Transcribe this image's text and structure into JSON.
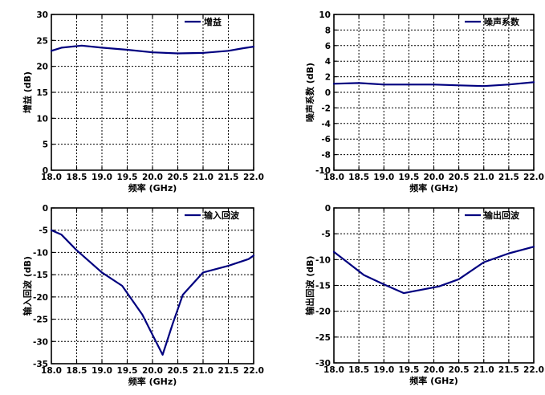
{
  "chart_data": [
    {
      "type": "line",
      "title": "",
      "xlabel": "频率 (GHz)",
      "ylabel": "增益 (dB)",
      "xlim": [
        18.0,
        22.0
      ],
      "ylim": [
        0,
        30
      ],
      "xticks": [
        "18.0",
        "18.5",
        "19.0",
        "19.5",
        "20.0",
        "20.5",
        "21.0",
        "21.5",
        "22.0"
      ],
      "yticks": [
        "0",
        "5",
        "10",
        "15",
        "20",
        "25",
        "30"
      ],
      "grid": true,
      "legend_position": "top-right",
      "series": [
        {
          "name": "增益",
          "color": "#00007f",
          "x": [
            18.0,
            18.2,
            18.6,
            19.0,
            19.5,
            20.0,
            20.5,
            21.0,
            21.5,
            21.8,
            22.0
          ],
          "y": [
            23.0,
            23.6,
            24.0,
            23.6,
            23.2,
            22.7,
            22.5,
            22.6,
            23.0,
            23.5,
            23.8
          ]
        }
      ]
    },
    {
      "type": "line",
      "title": "",
      "xlabel": "频率 (GHz)",
      "ylabel": "噪声系数 (dB)",
      "xlim": [
        18.0,
        22.0
      ],
      "ylim": [
        -10,
        10
      ],
      "xticks": [
        "18.0",
        "18.5",
        "19.0",
        "19.5",
        "20.0",
        "20.5",
        "21.0",
        "21.5",
        "22.0"
      ],
      "yticks": [
        "-10",
        "-8",
        "-6",
        "-4",
        "-2",
        "0",
        "2",
        "4",
        "6",
        "8",
        "10"
      ],
      "grid": true,
      "legend_position": "top-right",
      "series": [
        {
          "name": "噪声系数",
          "color": "#00007f",
          "x": [
            18.0,
            18.5,
            19.0,
            19.5,
            20.0,
            20.5,
            21.0,
            21.5,
            22.0
          ],
          "y": [
            1.1,
            1.2,
            1.0,
            1.0,
            1.0,
            0.9,
            0.8,
            1.0,
            1.3
          ]
        }
      ]
    },
    {
      "type": "line",
      "title": "",
      "xlabel": "频率 (GHz)",
      "ylabel": "输入回波 (dB)",
      "xlim": [
        18.0,
        22.0
      ],
      "ylim": [
        -35,
        0
      ],
      "xticks": [
        "18.0",
        "18.5",
        "19.0",
        "19.5",
        "20.0",
        "20.5",
        "21.0",
        "21.5",
        "22.0"
      ],
      "yticks": [
        "-35",
        "-30",
        "-25",
        "-20",
        "-15",
        "-10",
        "-5",
        "0"
      ],
      "grid": true,
      "legend_position": "top-right",
      "series": [
        {
          "name": "输入回波",
          "color": "#00007f",
          "x": [
            18.0,
            18.2,
            18.5,
            19.0,
            19.4,
            19.8,
            20.0,
            20.2,
            20.4,
            20.6,
            21.0,
            21.5,
            21.9,
            22.0
          ],
          "y": [
            -5.0,
            -6.0,
            -9.5,
            -14.5,
            -17.5,
            -24.0,
            -28.5,
            -33.0,
            -26.0,
            -19.5,
            -14.5,
            -13.0,
            -11.5,
            -10.7
          ]
        }
      ]
    },
    {
      "type": "line",
      "title": "",
      "xlabel": "频率 (GHz)",
      "ylabel": "输出回波 (dB)",
      "xlim": [
        18.0,
        22.0
      ],
      "ylim": [
        -30,
        0
      ],
      "xticks": [
        "18.0",
        "18.5",
        "19.0",
        "19.5",
        "20.0",
        "20.5",
        "21.0",
        "21.5",
        "22.0"
      ],
      "yticks": [
        "-30",
        "-25",
        "-20",
        "-15",
        "-10",
        "-5",
        "0"
      ],
      "grid": true,
      "legend_position": "top-right",
      "series": [
        {
          "name": "输出回波",
          "color": "#00007f",
          "x": [
            18.0,
            18.2,
            18.6,
            19.0,
            19.4,
            20.1,
            20.5,
            21.0,
            21.5,
            22.0
          ],
          "y": [
            -8.5,
            -10.0,
            -13.0,
            -14.8,
            -16.5,
            -15.2,
            -13.8,
            -10.5,
            -8.8,
            -7.5
          ]
        }
      ]
    }
  ]
}
